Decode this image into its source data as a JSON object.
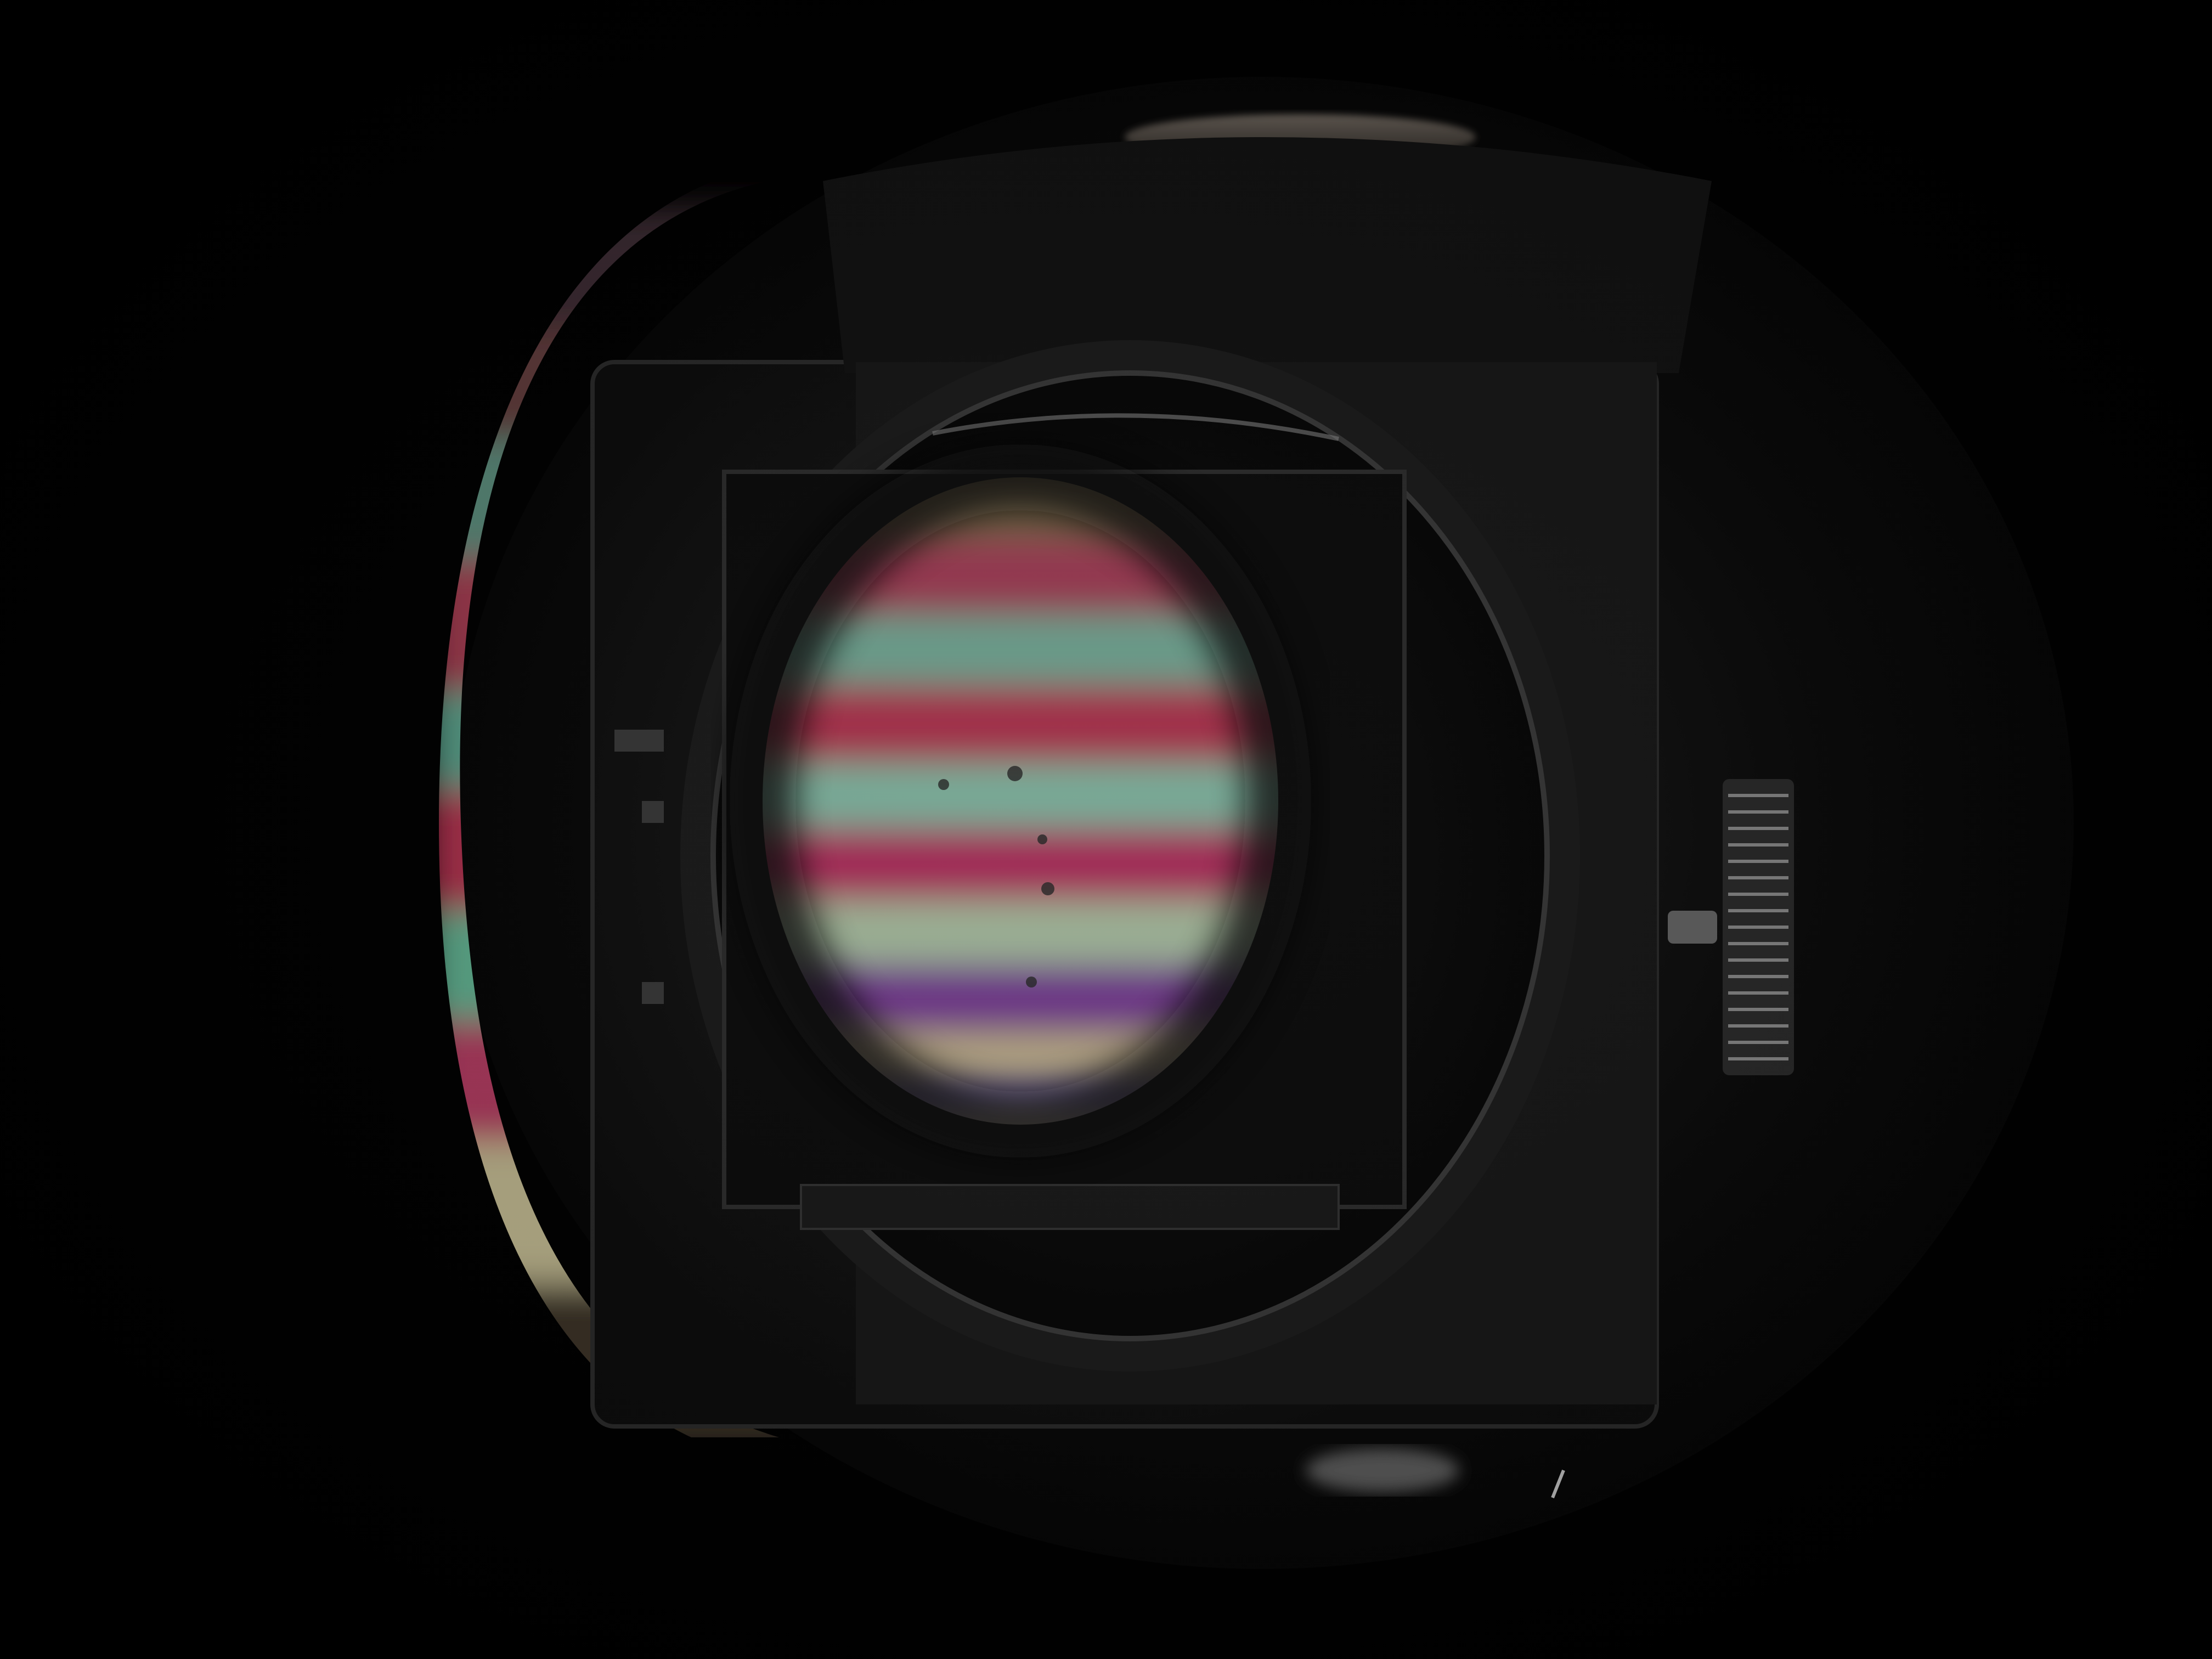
{
  "photo": {
    "subject": "optical-element-interference-fringes",
    "fringe_colors": [
      "#d8c9a0",
      "#c24a6a",
      "#7fb8a6",
      "#c23a58",
      "#8cc8b0",
      "#c0306a",
      "#b8d0b0",
      "#8a3aa0",
      "#d8c8a0",
      "#5a40b8",
      "#e0d4b0"
    ],
    "ring_colors": [
      "#c04060",
      "#70b8a0",
      "#c03050",
      "#60b090",
      "#c04070",
      "#d8c8a0"
    ],
    "background_color": "#000000",
    "housing_color": "#161616",
    "mount_color": "#222222"
  }
}
